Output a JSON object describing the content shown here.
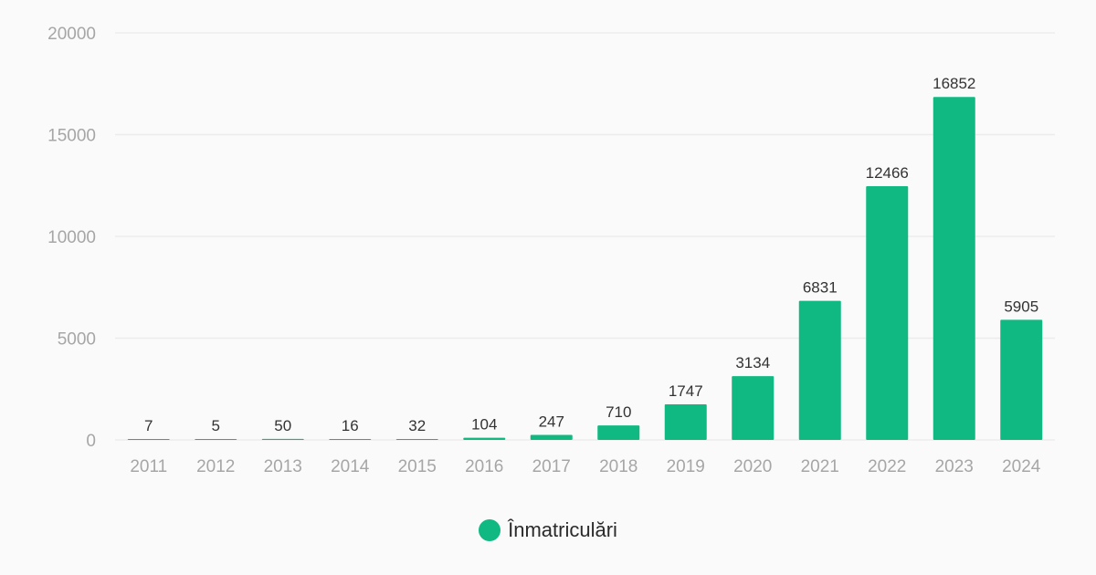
{
  "chart_data": {
    "type": "bar",
    "categories": [
      "2011",
      "2012",
      "2013",
      "2014",
      "2015",
      "2016",
      "2017",
      "2018",
      "2019",
      "2020",
      "2021",
      "2022",
      "2023",
      "2024"
    ],
    "series": [
      {
        "name": "Înmatriculări",
        "values": [
          7,
          5,
          50,
          16,
          32,
          104,
          247,
          710,
          1747,
          3134,
          6831,
          12466,
          16852,
          5905
        ],
        "color": "#10b981"
      }
    ],
    "y_ticks": [
      0,
      5000,
      10000,
      15000,
      20000
    ],
    "ylim": [
      0,
      20000
    ],
    "grid": true,
    "legend_position": "bottom-center",
    "data_labels": true
  }
}
